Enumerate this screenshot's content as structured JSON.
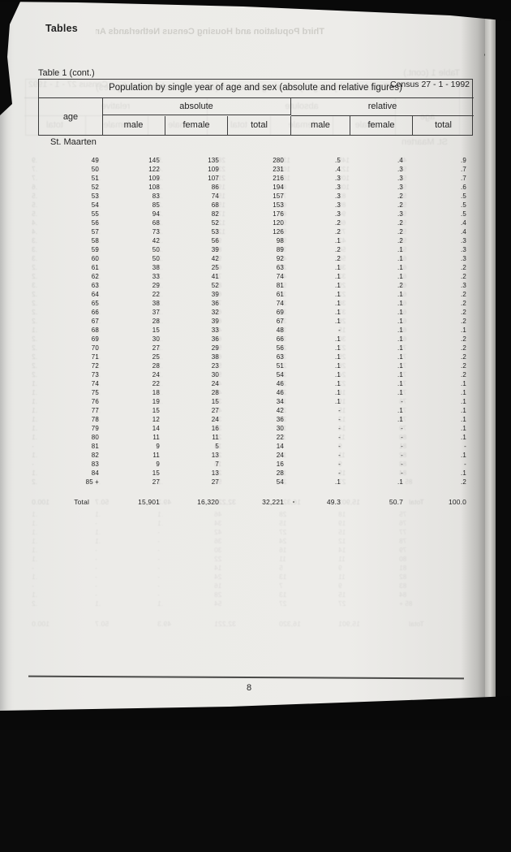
{
  "page": {
    "section_heading": "Tables",
    "page_number": "8"
  },
  "bleedthrough": {
    "header_text": "Third Population and Housing Census Netherlands Antilles"
  },
  "table": {
    "caption": "Table 1 (cont.)",
    "census_label": "Census 27 - 1 - 1992",
    "title": "Population by single year of age and sex (absolute and relative figures)",
    "region_label": "St. Maarten",
    "headers": {
      "age": "age",
      "group_absolute": "absolute",
      "group_relative": "relative",
      "male": "male",
      "female": "female",
      "total": "total"
    },
    "rows": [
      [
        "49",
        "145",
        "135",
        "280",
        ".5",
        ".4",
        ".9"
      ],
      [
        "50",
        "122",
        "109",
        "231",
        ".4",
        ".3",
        ".7"
      ],
      [
        "51",
        "109",
        "107",
        "216",
        ".3",
        ".3",
        ".7"
      ],
      [
        "52",
        "108",
        "86",
        "194",
        ".3",
        ".3",
        ".6"
      ],
      [
        "53",
        "83",
        "74",
        "157",
        ".3",
        ".2",
        ".5"
      ],
      [
        "54",
        "85",
        "68",
        "153",
        ".3",
        ".2",
        ".5"
      ],
      [
        "55",
        "94",
        "82",
        "176",
        ".3",
        ".3",
        ".5"
      ],
      [
        "56",
        "68",
        "52",
        "120",
        ".2",
        ".2",
        ".4"
      ],
      [
        "57",
        "73",
        "53",
        "126",
        ".2",
        ".2",
        ".4"
      ],
      [
        "58",
        "42",
        "56",
        "98",
        ".1",
        ".2",
        ".3"
      ],
      [
        "59",
        "50",
        "39",
        "89",
        ".2",
        ".1",
        ".3"
      ],
      [
        "60",
        "50",
        "42",
        "92",
        ".2",
        ".1",
        ".3"
      ],
      [
        "61",
        "38",
        "25",
        "63",
        ".1",
        ".1",
        ".2"
      ],
      [
        "62",
        "33",
        "41",
        "74",
        ".1",
        ".1",
        ".2"
      ],
      [
        "63",
        "29",
        "52",
        "81",
        ".1",
        ".2",
        ".3"
      ],
      [
        "64",
        "22",
        "39",
        "61",
        ".1",
        ".1",
        ".2"
      ],
      [
        "65",
        "38",
        "36",
        "74",
        ".1",
        ".1",
        ".2"
      ],
      [
        "66",
        "37",
        "32",
        "69",
        ".1",
        ".1",
        ".2"
      ],
      [
        "67",
        "28",
        "39",
        "67",
        ".1",
        ".1",
        ".2"
      ],
      [
        "68",
        "15",
        "33",
        "48",
        "-",
        ".1",
        ".1"
      ],
      [
        "69",
        "30",
        "36",
        "66",
        ".1",
        ".1",
        ".2"
      ],
      [
        "70",
        "27",
        "29",
        "56",
        ".1",
        ".1",
        ".2"
      ],
      [
        "71",
        "25",
        "38",
        "63",
        ".1",
        ".1",
        ".2"
      ],
      [
        "72",
        "28",
        "23",
        "51",
        ".1",
        ".1",
        ".2"
      ],
      [
        "73",
        "24",
        "30",
        "54",
        ".1",
        ".1",
        ".2"
      ],
      [
        "74",
        "22",
        "24",
        "46",
        ".1",
        ".1",
        ".1"
      ],
      [
        "75",
        "18",
        "28",
        "46",
        ".1",
        ".1",
        ".1"
      ],
      [
        "76",
        "19",
        "15",
        "34",
        ".1",
        "-",
        ".1"
      ],
      [
        "77",
        "15",
        "27",
        "42",
        "-",
        ".1",
        ".1"
      ],
      [
        "78",
        "12",
        "24",
        "36",
        "-",
        ".1",
        ".1"
      ],
      [
        "79",
        "14",
        "16",
        "30",
        "-",
        "-",
        ".1"
      ],
      [
        "80",
        "11",
        "11",
        "22",
        "-",
        "-",
        ".1"
      ],
      [
        "81",
        "9",
        "5",
        "14",
        "-",
        "-",
        "-"
      ],
      [
        "82",
        "11",
        "13",
        "24",
        "-",
        "-",
        ".1"
      ],
      [
        "83",
        "9",
        "7",
        "16",
        "-",
        "-",
        "-"
      ],
      [
        "84",
        "15",
        "13",
        "28",
        "-",
        "-",
        ".1"
      ],
      [
        "85 +",
        "27",
        "27",
        "54",
        ".1",
        ".1",
        ".2"
      ]
    ],
    "total_row": {
      "label": "Total",
      "male": "15,901",
      "female": "16,320",
      "total": "32,221",
      "rel_male": "49.3",
      "rel_female": "50.7",
      "rel_total": "100.0"
    }
  },
  "colors": {
    "paper": "#ecebe8",
    "ink": "#222222",
    "scan_background": "#0a0a0a",
    "table_border": "#3c3c3c"
  }
}
